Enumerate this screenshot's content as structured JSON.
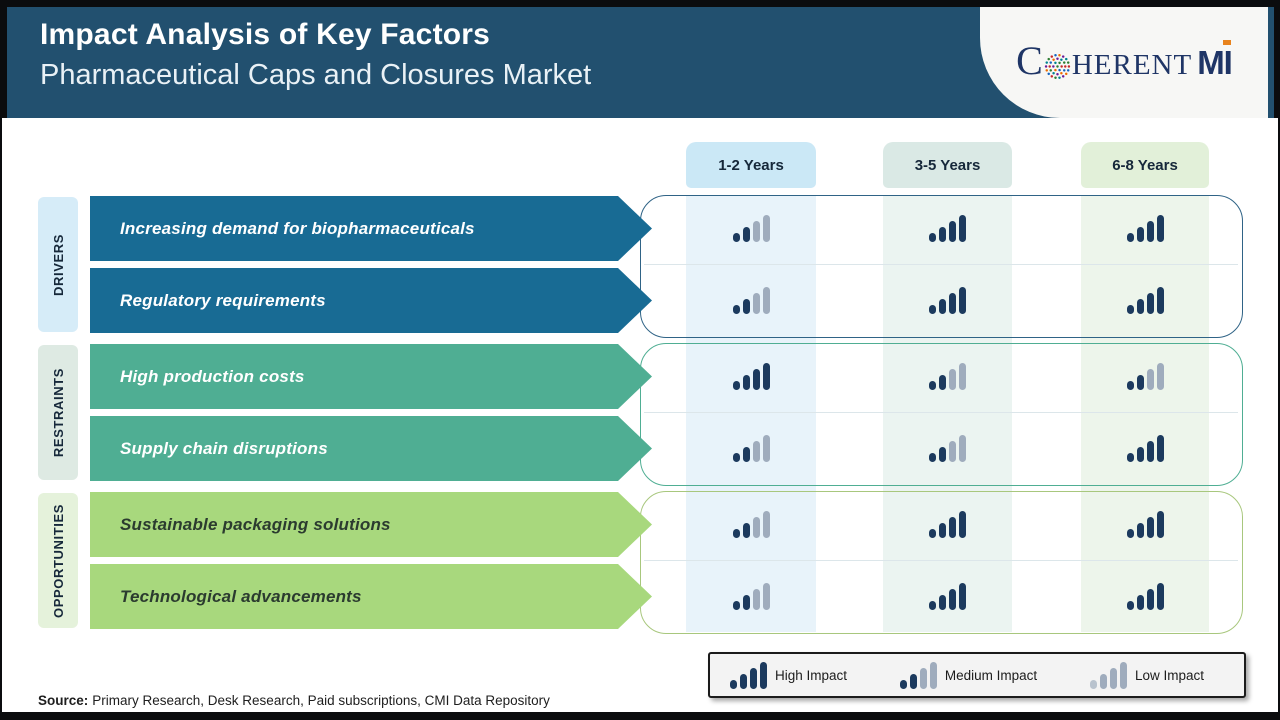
{
  "header": {
    "title": "Impact Analysis of Key Factors",
    "subtitle": "Pharmaceutical Caps and Closures Market",
    "logo": {
      "prefix": "C",
      "middle": "HERENT",
      "suffix": "MI"
    }
  },
  "columns": [
    "1-2 Years",
    "3-5 Years",
    "6-8 Years"
  ],
  "groups": [
    {
      "label": "DRIVERS",
      "accent": "#186B94",
      "tint": "#D6ECF8",
      "border": "#2F6386",
      "text_color": "#FFFFFF",
      "rows": [
        {
          "label": "Increasing demand for biopharmaceuticals",
          "impacts": [
            "medium",
            "high",
            "high"
          ]
        },
        {
          "label": "Regulatory requirements",
          "impacts": [
            "medium",
            "high",
            "high"
          ]
        }
      ]
    },
    {
      "label": "RESTRAINTS",
      "accent": "#4FAE93",
      "tint": "#DEEAE3",
      "border": "#4FAE93",
      "text_color": "#FFFFFF",
      "rows": [
        {
          "label": "High production costs",
          "impacts": [
            "high",
            "medium",
            "medium"
          ]
        },
        {
          "label": "Supply chain disruptions",
          "impacts": [
            "medium",
            "medium",
            "high"
          ]
        }
      ]
    },
    {
      "label": "OPPORTUNITIES",
      "accent": "#A8D87D",
      "tint": "#E5F2DB",
      "border": "#A8C77D",
      "text_color": "#2B3B2F",
      "rows": [
        {
          "label": "Sustainable packaging solutions",
          "impacts": [
            "medium",
            "high",
            "high"
          ]
        },
        {
          "label": "Technological advancements",
          "impacts": [
            "medium",
            "high",
            "high"
          ]
        }
      ]
    }
  ],
  "legend": [
    {
      "label": "High Impact",
      "level": "high"
    },
    {
      "label": "Medium Impact",
      "level": "medium"
    },
    {
      "label": "Low Impact",
      "level": "low"
    }
  ],
  "source": {
    "label": "Source:",
    "text": "Primary Research, Desk Research, Paid subscriptions, CMI Data Repository"
  },
  "colors": {
    "header_bg": "#22506F",
    "frame": "#0B0C0E",
    "column_header_bg": [
      "#CBE8F6",
      "#DAE9E5",
      "#E2F0D9"
    ],
    "column_bands": [
      "#E8F3FA",
      "#EBF4F1",
      "#EDF5EB"
    ],
    "bar_dark": "#1C3A5E",
    "bar_gray": "#9FACBD",
    "bar_light": "#B9C3CE",
    "legend_bg": "#F3F3F3",
    "logo_navy": "#1F3566",
    "logo_orange": "#E8831D"
  },
  "chart_data": {
    "type": "table",
    "title": "Impact Analysis of Key Factors",
    "subtitle": "Pharmaceutical Caps and Closures Market",
    "columns": [
      "1-2 Years",
      "3-5 Years",
      "6-8 Years"
    ],
    "impact_scale": [
      "low",
      "medium",
      "high"
    ],
    "rows": [
      {
        "category": "DRIVERS",
        "factor": "Increasing demand for biopharmaceuticals",
        "impacts": [
          "medium",
          "high",
          "high"
        ]
      },
      {
        "category": "DRIVERS",
        "factor": "Regulatory requirements",
        "impacts": [
          "medium",
          "high",
          "high"
        ]
      },
      {
        "category": "RESTRAINTS",
        "factor": "High production costs",
        "impacts": [
          "high",
          "medium",
          "medium"
        ]
      },
      {
        "category": "RESTRAINTS",
        "factor": "Supply chain disruptions",
        "impacts": [
          "medium",
          "medium",
          "high"
        ]
      },
      {
        "category": "OPPORTUNITIES",
        "factor": "Sustainable packaging solutions",
        "impacts": [
          "medium",
          "high",
          "high"
        ]
      },
      {
        "category": "OPPORTUNITIES",
        "factor": "Technological advancements",
        "impacts": [
          "medium",
          "high",
          "high"
        ]
      }
    ]
  }
}
